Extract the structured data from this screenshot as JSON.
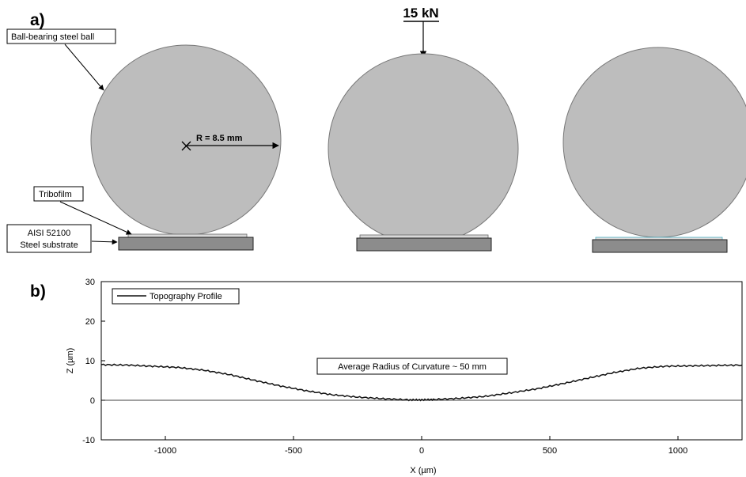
{
  "panel_a": {
    "letter": "a)",
    "force_label": "15 kN",
    "ball_label": "Ball-bearing steel ball",
    "radius_label": "R = 8.5 mm",
    "tribofilm_label": "Tribofilm",
    "substrate_label_line1": "AISI 52100",
    "substrate_label_line2": "Steel substrate",
    "colors": {
      "ball": "#bdbdbd",
      "substrate": "#8c8c8c",
      "film": "#d9d9d9",
      "film_edge": "#4fb3c8"
    }
  },
  "panel_b": {
    "letter": "b)",
    "legend_label": "Topography Profile",
    "annotation": "Average Radius of Curvature ~ 50 mm"
  },
  "chart_data": {
    "type": "line",
    "xlabel": "X (µm)",
    "ylabel": "Z (µm)",
    "xlim": [
      -1250,
      1250
    ],
    "ylim": [
      -10,
      30
    ],
    "xticks": [
      -1000,
      -500,
      0,
      500,
      1000
    ],
    "yticks": [
      -10,
      0,
      10,
      20,
      30
    ],
    "grid": false,
    "legend_position": "top-left",
    "series": [
      {
        "name": "Topography Profile",
        "x": [
          -1250,
          -1150,
          -1050,
          -950,
          -850,
          -750,
          -650,
          -550,
          -450,
          -350,
          -250,
          -150,
          -50,
          0,
          50,
          150,
          250,
          350,
          450,
          550,
          650,
          750,
          850,
          950,
          1050,
          1150,
          1250
        ],
        "y": [
          9.0,
          8.9,
          8.6,
          8.3,
          7.6,
          6.5,
          5.0,
          3.6,
          2.4,
          1.4,
          0.8,
          0.4,
          0.1,
          0.1,
          0.2,
          0.5,
          1.0,
          1.9,
          2.9,
          4.2,
          5.6,
          7.0,
          8.1,
          8.6,
          8.7,
          8.8,
          8.9
        ]
      }
    ]
  }
}
